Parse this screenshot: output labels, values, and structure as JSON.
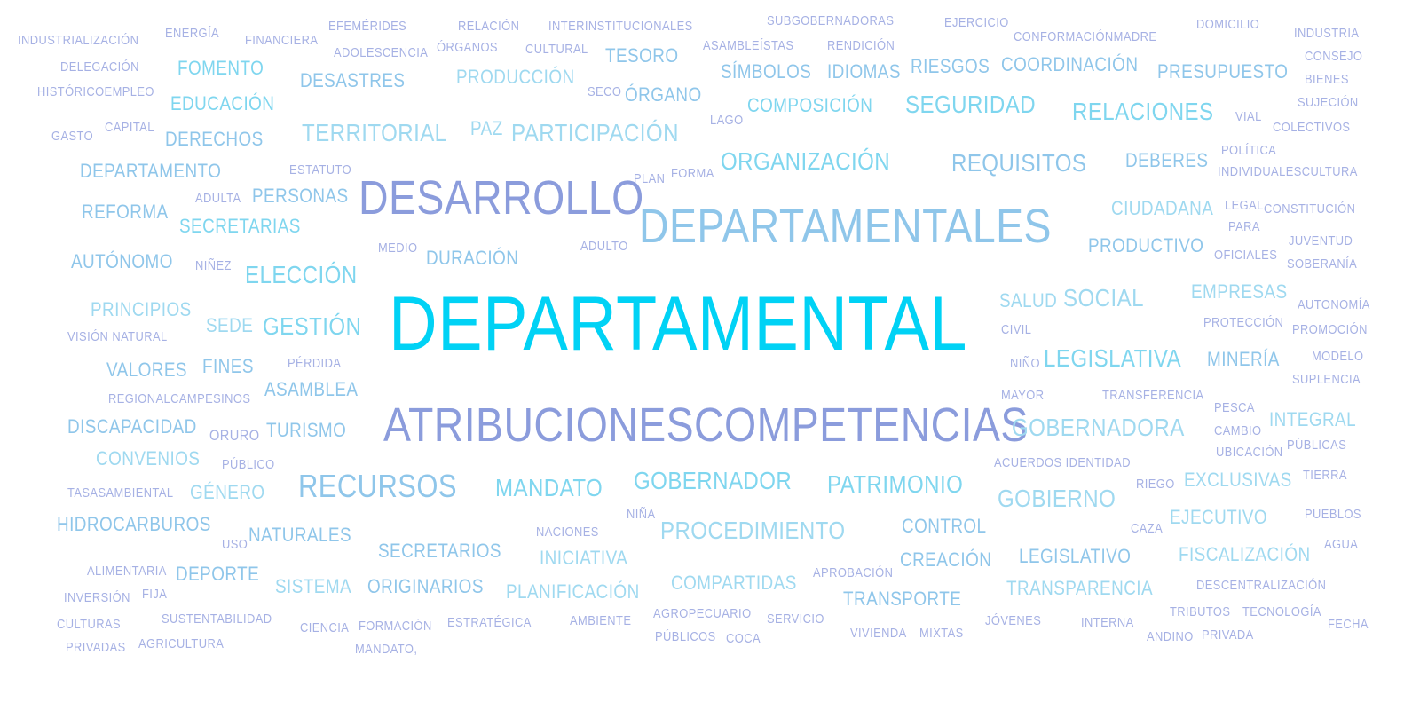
{
  "colors": {
    "primary": "#00d2f5",
    "periwinkle": "#8b9cdc",
    "sky": "#8fc6ea",
    "cyan": "#7fd6ef",
    "lavender": "#a6b1e4",
    "pale": "#9fd9f0"
  },
  "words": {
    "departamental": "DEPARTAMENTAL",
    "departamentales": "DEPARTAMENTALES",
    "desarrollo": "DESARROLLO",
    "atribuciones_competencias": "ATRIBUCIONESCOMPETENCIAS",
    "recursos": "RECURSOS",
    "gobernador": "GOBERNADOR",
    "patrimonio": "PATRIMONIO",
    "mandato": "MANDATO",
    "seguridad": "SEGURIDAD",
    "relaciones": "RELACIONES",
    "territorial": "TERRITORIAL",
    "participacion": "PARTICIPACIÓN",
    "paz": "PAZ",
    "organizacion": "ORGANIZACIÓN",
    "requisitos": "REQUISITOS",
    "eleccion": "ELECCIÓN",
    "gestion": "GESTIÓN",
    "legislativa": "LEGISLATIVA",
    "gobernadora": "GOBERNADORA",
    "gobierno": "GOBIERNO",
    "procedimiento": "PROCEDIMIENTO",
    "social": "SOCIAL",
    "salud": "SALUD",
    "ciudadana": "CIUDADANA",
    "productivo": "PRODUCTIVO",
    "deberes": "DEBERES",
    "presupuesto": "PRESUPUESTO",
    "riesgos": "RIESGOS",
    "coordinacion": "COORDINACIÓN",
    "simbolos": "SÍMBOLOS",
    "idiomas": "IDIOMAS",
    "composicion": "COMPOSICIÓN",
    "produccion": "PRODUCCIÓN",
    "organo": "ÓRGANO",
    "seco": "SECO",
    "desastres": "DESASTRES",
    "tesoro": "TESORO",
    "fomento": "FOMENTO",
    "educacion": "EDUCACIÓN",
    "derechos": "DERECHOS",
    "departamento": "DEPARTAMENTO",
    "reforma": "REFORMA",
    "secretarias": "SECRETARIAS",
    "personas": "PERSONAS",
    "autonomo": "AUTÓNOMO",
    "principios": "PRINCIPIOS",
    "sede": "SEDE",
    "valores": "VALORES",
    "fines": "FINES",
    "asamblea": "ASAMBLEA",
    "discapacidad": "DISCAPACIDAD",
    "turismo": "TURISMO",
    "oruro": "ORURO",
    "convenios": "CONVENIOS",
    "genero": "GÉNERO",
    "hidrocarburos": "HIDROCARBUROS",
    "naturales": "NATURALES",
    "secretarios": "SECRETARIOS",
    "deporte": "DEPORTE",
    "sistema": "SISTEMA",
    "originarios": "ORIGINARIOS",
    "iniciativa": "INICIATIVA",
    "planificacion": "PLANIFICACIÓN",
    "compartidas": "COMPARTIDAS",
    "control": "CONTROL",
    "creacion": "CREACIÓN",
    "legislativo": "LEGISLATIVO",
    "fiscalizacion": "FISCALIZACIÓN",
    "transporte": "TRANSPORTE",
    "transparencia": "TRANSPARENCIA",
    "exclusivas": "EXCLUSIVAS",
    "ejecutivo": "EJECUTIVO",
    "empresas": "EMPRESAS",
    "mineria": "MINERÍA",
    "integral": "INTEGRAL",
    "duracion": "DURACIÓN",
    "industrializacion": "INDUSTRIALIZACIÓN",
    "energia": "ENERGÍA",
    "financiera": "FINANCIERA",
    "efemerides": "EFEMÉRIDES",
    "adolescencia": "ADOLESCENCIA",
    "relacion": "RELACIÓN",
    "organos": "ÓRGANOS",
    "interinstitucionales": "INTERINSTITUCIONALES",
    "cultural": "CULTURAL",
    "subgobernadoras": "SUBGOBERNADORAS",
    "asambleistas": "ASAMBLEÍSTAS",
    "rendicion": "RENDICIÓN",
    "ejercicio": "EJERCICIO",
    "conformacion_madre": "CONFORMACIÓNMADRE",
    "domicilio": "DOMICILIO",
    "industria": "INDUSTRIA",
    "consejo": "CONSEJO",
    "bienes": "BIENES",
    "delegacion": "DELEGACIÓN",
    "historico_empleo": "HISTÓRICOEMPLEO",
    "gasto": "GASTO",
    "capital": "CAPITAL",
    "sujecion": "SUJECIÓN",
    "colectivos": "COLECTIVOS",
    "vial": "VIAL",
    "lago": "LAGO",
    "politica": "POLÍTICA",
    "individuales_cultura": "INDIVIDUALESCULTURA",
    "estatuto": "ESTATUTO",
    "plan": "PLAN",
    "forma": "FORMA",
    "adulta": "ADULTA",
    "legal": "LEGAL",
    "para": "PARA",
    "constitucion": "CONSTITUCIÓN",
    "medio": "MEDIO",
    "adulto": "ADULTO",
    "juventud": "JUVENTUD",
    "oficiales": "OFICIALES",
    "soberania": "SOBERANÍA",
    "ninez": "NIÑEZ",
    "autonomia": "AUTONOMÍA",
    "proteccion": "PROTECCIÓN",
    "promocion": "PROMOCIÓN",
    "vision_natural": "VISIÓN NATURAL",
    "civil": "CIVIL",
    "perdida": "PÉRDIDA",
    "nino": "NIÑO",
    "modelo": "MODELO",
    "suplencia": "SUPLENCIA",
    "regional_campesinos": "REGIONALCAMPESINOS",
    "mayor": "MAYOR",
    "transferencia": "TRANSFERENCIA",
    "pesca": "PESCA",
    "cambio": "CAMBIO",
    "publicas": "PÚBLICAS",
    "ubicacion": "UBICACIÓN",
    "publico": "PÚBLICO",
    "acuerdos_identidad": "ACUERDOS IDENTIDAD",
    "tierra": "TIERRA",
    "tasas_ambiental": "TASASAMBIENTAL",
    "riego": "RIEGO",
    "nina": "NIÑA",
    "naciones": "NACIONES",
    "caza": "CAZA",
    "pueblos": "PUEBLOS",
    "uso": "USO",
    "agua": "AGUA",
    "alimentaria": "ALIMENTARIA",
    "aprobacion": "APROBACIÓN",
    "inversion": "INVERSIÓN",
    "fija": "FIJA",
    "descentralizacion": "DESCENTRALIZACIÓN",
    "culturas": "CULTURAS",
    "sustentabilidad": "SUSTENTABILIDAD",
    "ciencia": "CIENCIA",
    "formacion": "FORMACIÓN",
    "estrategica": "ESTRATÉGICA",
    "ambiente": "AMBIENTE",
    "agropecuario": "AGROPECUARIO",
    "servicio": "SERVICIO",
    "tributos": "TRIBUTOS",
    "tecnologia": "TECNOLOGÍA",
    "fecha": "FECHA",
    "jovenes": "JÓVENES",
    "interna": "INTERNA",
    "andino": "ANDINO",
    "privada": "PRIVADA",
    "privadas": "PRIVADAS",
    "agricultura": "AGRICULTURA",
    "mandato_comma": "MANDATO,",
    "publicos": "PÚBLICOS",
    "coca": "COCA",
    "vivienda": "VIVIENDA",
    "mixtas": "MIXTAS"
  }
}
